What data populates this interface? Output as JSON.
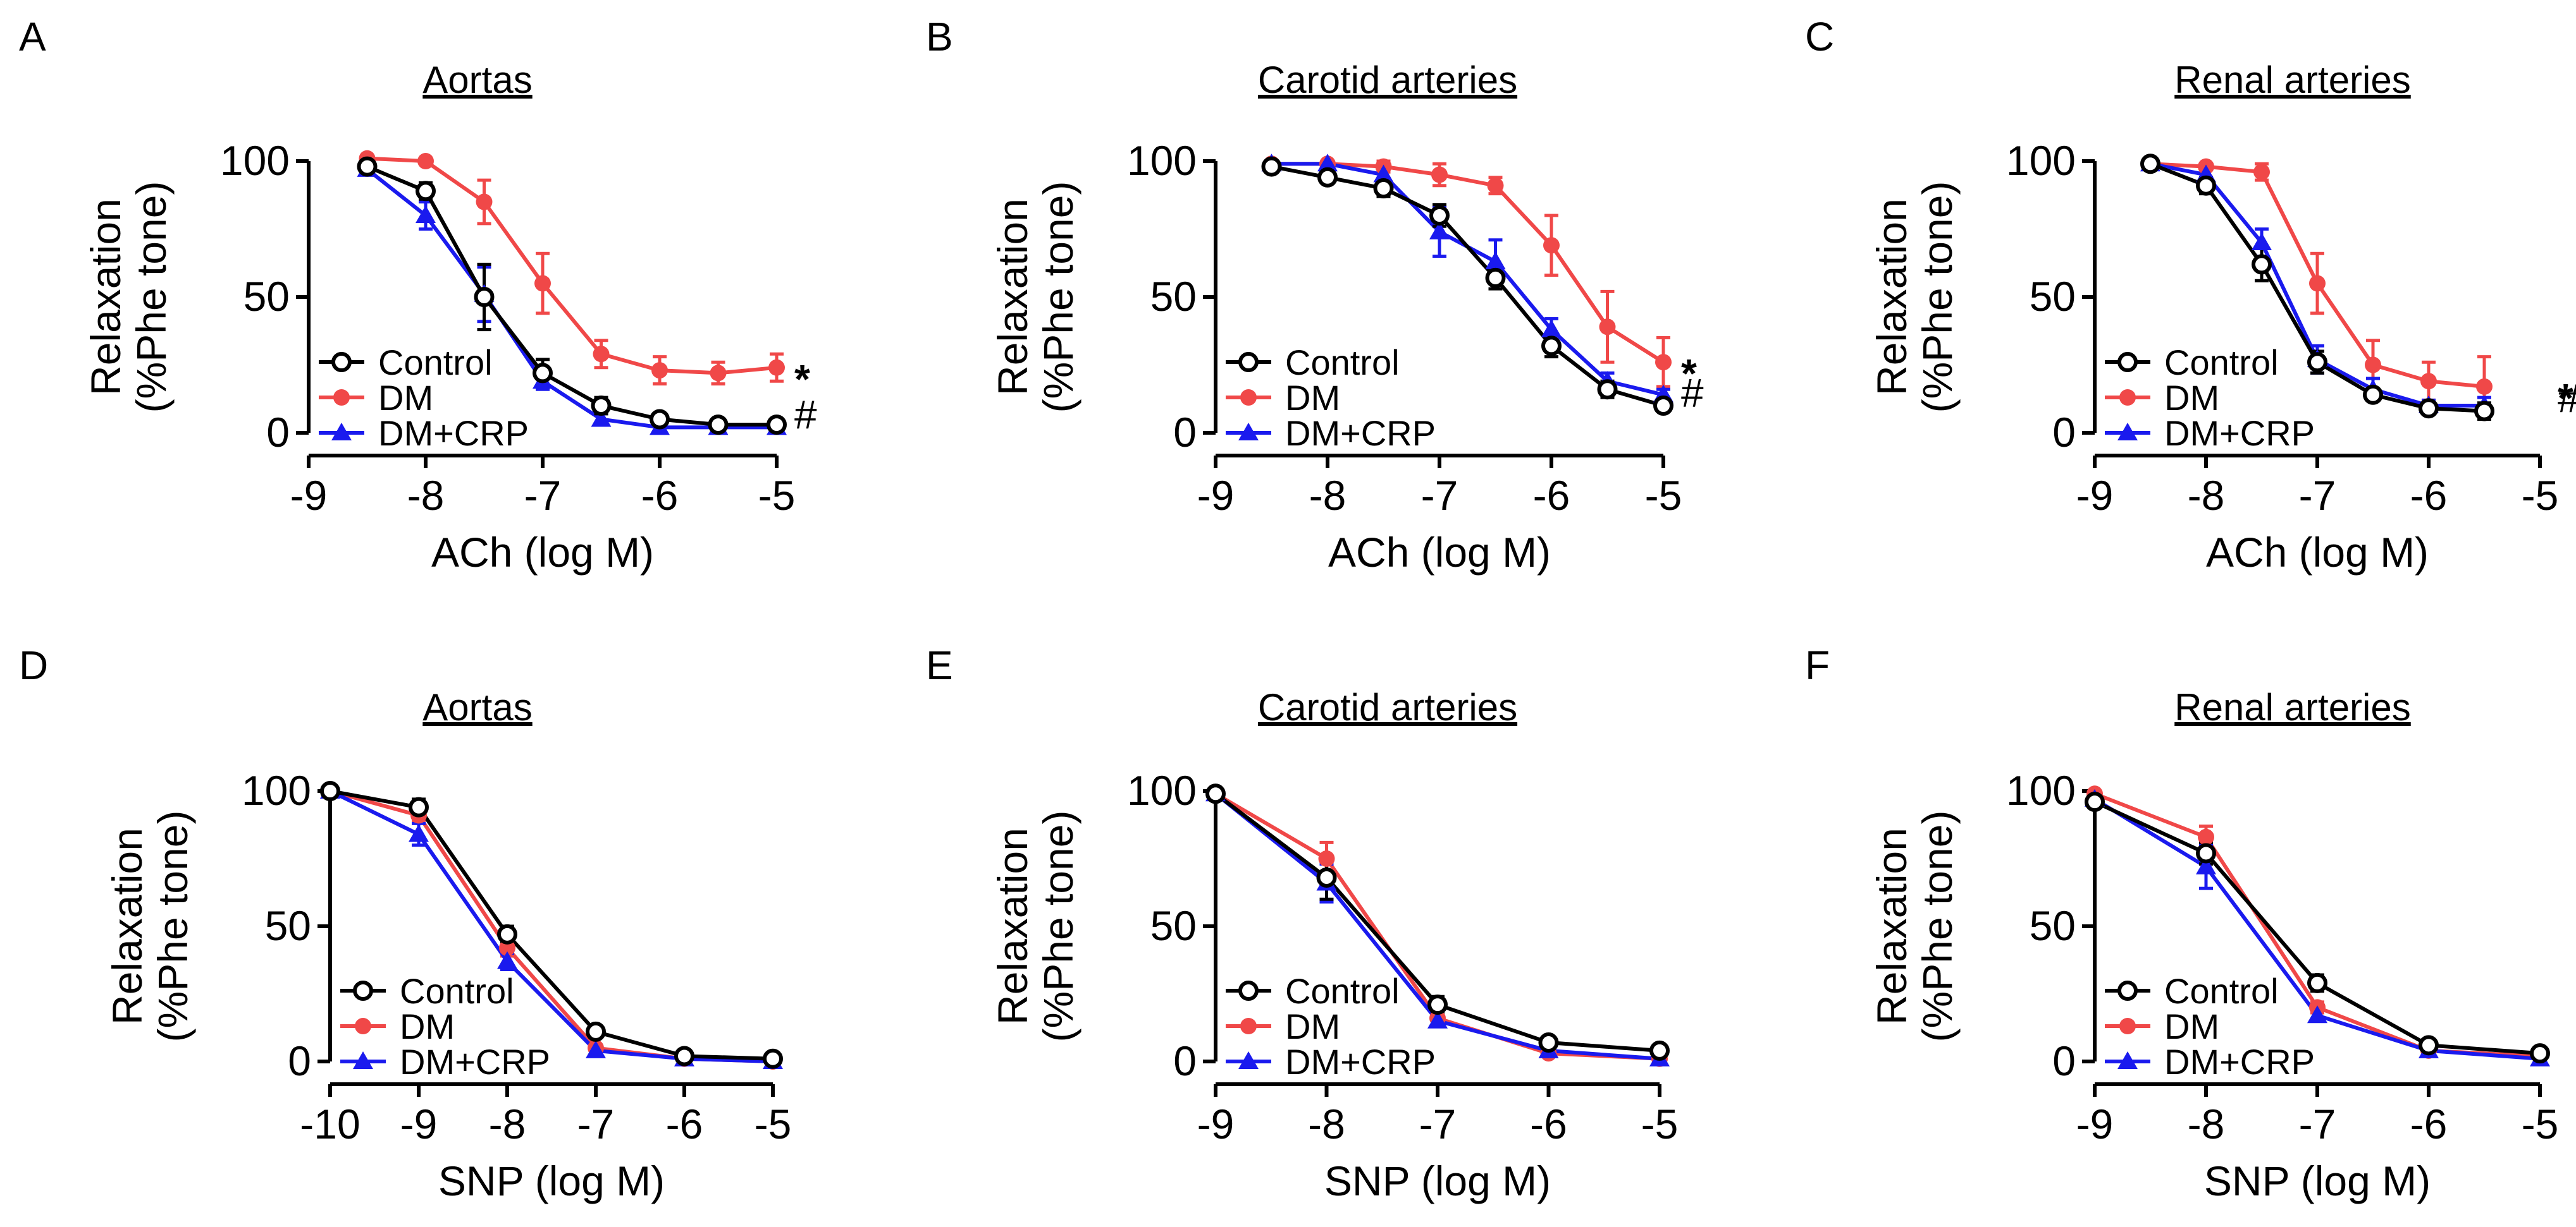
{
  "colors": {
    "control": "#000000",
    "dm": "#f04848",
    "dmcrp": "#1a1aee"
  },
  "chart_data": [
    {
      "type": "line",
      "panel": "A",
      "title": "Aortas",
      "xlabel": "ACh (log M)",
      "ylabel": [
        "Relaxation",
        "(%Phe tone)"
      ],
      "xlim": [
        -9,
        -5
      ],
      "ylim": [
        0,
        100
      ],
      "xticks": [
        -9,
        -8,
        -7,
        -6,
        -5
      ],
      "yticks": [
        0,
        50,
        100
      ],
      "xtick_labels": [
        "-9",
        "-8",
        "-7",
        "-6",
        "-5"
      ],
      "ytick_labels": [
        "0",
        "50",
        "100"
      ],
      "legend": [
        "Control",
        "DM",
        "DM+CRP"
      ],
      "series": [
        {
          "name": "Control",
          "x": [
            -8.5,
            -8,
            -7.5,
            -7,
            -6.5,
            -6,
            -5.5,
            -5
          ],
          "values": [
            98,
            89,
            50,
            22,
            10,
            5,
            3,
            3
          ],
          "err": [
            2,
            3,
            12,
            5,
            3,
            2,
            2,
            2
          ]
        },
        {
          "name": "DM",
          "x": [
            -8.5,
            -8,
            -7.5,
            -7,
            -6.5,
            -6,
            -5.5,
            -5
          ],
          "values": [
            101,
            100,
            85,
            55,
            29,
            23,
            22,
            24
          ],
          "err": [
            1,
            1,
            8,
            11,
            5,
            5,
            4,
            5
          ]
        },
        {
          "name": "DM+CRP",
          "x": [
            -8.5,
            -8,
            -7.5,
            -7,
            -6.5,
            -6,
            -5.5,
            -5
          ],
          "values": [
            97,
            80,
            51,
            19,
            5,
            2,
            2,
            2
          ],
          "err": [
            2,
            5,
            10,
            3,
            2,
            1,
            1,
            1
          ]
        }
      ],
      "annotations": {
        "star": "*",
        "hash": "#"
      }
    },
    {
      "type": "line",
      "panel": "B",
      "title": "Carotid arteries",
      "xlabel": "ACh (log M)",
      "ylabel": [
        "Relaxation",
        "(%Phe tone)"
      ],
      "xlim": [
        -9,
        -5
      ],
      "ylim": [
        0,
        100
      ],
      "xticks": [
        -9,
        -8,
        -7,
        -6,
        -5
      ],
      "yticks": [
        0,
        50,
        100
      ],
      "xtick_labels": [
        "-9",
        "-8",
        "-7",
        "-6",
        "-5"
      ],
      "ytick_labels": [
        "0",
        "50",
        "100"
      ],
      "legend": [
        "Control",
        "DM",
        "DM+CRP"
      ],
      "series": [
        {
          "name": "Control",
          "x": [
            -8.5,
            -8,
            -7.5,
            -7,
            -6.5,
            -6,
            -5.5,
            -5
          ],
          "values": [
            98,
            94,
            90,
            80,
            57,
            32,
            16,
            10
          ],
          "err": [
            1,
            2,
            3,
            4,
            4,
            4,
            3,
            2
          ]
        },
        {
          "name": "DM",
          "x": [
            -8.5,
            -8,
            -7.5,
            -7,
            -6.5,
            -6,
            -5.5,
            -5
          ],
          "values": [
            99,
            99,
            98,
            95,
            91,
            69,
            39,
            26
          ],
          "err": [
            1,
            1,
            2,
            4,
            3,
            11,
            13,
            9
          ]
        },
        {
          "name": "DM+CRP",
          "x": [
            -8.5,
            -8,
            -7.5,
            -7,
            -6.5,
            -6,
            -5.5,
            -5
          ],
          "values": [
            99,
            99,
            95,
            74,
            63,
            38,
            19,
            14
          ],
          "err": [
            1,
            1,
            3,
            9,
            8,
            4,
            3,
            2
          ]
        }
      ],
      "annotations": {
        "star": "*",
        "hash": "#"
      }
    },
    {
      "type": "line",
      "panel": "C",
      "title": "Renal arteries",
      "xlabel": "ACh (log M)",
      "ylabel": [
        "Relaxation",
        "(%Phe tone)"
      ],
      "xlim": [
        -9,
        -5
      ],
      "ylim": [
        0,
        100
      ],
      "xticks": [
        -9,
        -8,
        -7,
        -6,
        -5
      ],
      "yticks": [
        0,
        50,
        100
      ],
      "xtick_labels": [
        "-9",
        "-8",
        "-7",
        "-6",
        "-5"
      ],
      "ytick_labels": [
        "0",
        "50",
        "100"
      ],
      "legend": [
        "Control",
        "DM",
        "DM+CRP"
      ],
      "series": [
        {
          "name": "Control",
          "x": [
            -8.5,
            -8,
            -7.5,
            -7,
            -6.5,
            -6,
            -5.5
          ],
          "values": [
            99,
            91,
            62,
            26,
            14,
            9,
            8
          ],
          "err": [
            1,
            3,
            6,
            4,
            2,
            2,
            3
          ]
        },
        {
          "name": "DM",
          "x": [
            -8.5,
            -8,
            -7.5,
            -7,
            -6.5,
            -6,
            -5.5
          ],
          "values": [
            99,
            98,
            96,
            55,
            25,
            19,
            17
          ],
          "err": [
            1,
            1,
            3,
            11,
            9,
            7,
            11
          ]
        },
        {
          "name": "DM+CRP",
          "x": [
            -8.5,
            -8,
            -7.5,
            -7,
            -6.5,
            -6,
            -5.5
          ],
          "values": [
            99,
            95,
            70,
            27,
            16,
            10,
            10
          ],
          "err": [
            1,
            2,
            5,
            5,
            4,
            2,
            3
          ]
        }
      ],
      "annotations": {
        "star": "*",
        "hash": "#"
      }
    },
    {
      "type": "line",
      "panel": "D",
      "title": "Aortas",
      "xlabel": "SNP (log M)",
      "ylabel": [
        "Relaxation",
        "(%Phe tone)"
      ],
      "xlim": [
        -10,
        -5
      ],
      "ylim": [
        0,
        100
      ],
      "xticks": [
        -10,
        -9,
        -8,
        -7,
        -6,
        -5
      ],
      "yticks": [
        0,
        50,
        100
      ],
      "xtick_labels": [
        "-10",
        "-9",
        "-8",
        "-7",
        "-6",
        "-5"
      ],
      "ytick_labels": [
        "0",
        "50",
        "100"
      ],
      "legend": [
        "Control",
        "DM",
        "DM+CRP"
      ],
      "series": [
        {
          "name": "Control",
          "x": [
            -10,
            -9,
            -8,
            -7,
            -6,
            -5
          ],
          "values": [
            100,
            94,
            47,
            11,
            2,
            1
          ],
          "err": [
            1,
            3,
            3,
            1,
            1,
            1
          ]
        },
        {
          "name": "DM",
          "x": [
            -10,
            -9,
            -8,
            -7,
            -6,
            -5
          ],
          "values": [
            100,
            91,
            42,
            5,
            1,
            0
          ],
          "err": [
            1,
            2,
            3,
            1,
            1,
            1
          ]
        },
        {
          "name": "DM+CRP",
          "x": [
            -10,
            -9,
            -8,
            -7,
            -6,
            -5
          ],
          "values": [
            100,
            84,
            37,
            4,
            1,
            0
          ],
          "err": [
            1,
            4,
            3,
            1,
            1,
            1
          ]
        }
      ]
    },
    {
      "type": "line",
      "panel": "E",
      "title": "Carotid arteries",
      "xlabel": "SNP (log M)",
      "ylabel": [
        "Relaxation",
        "(%Phe tone)"
      ],
      "xlim": [
        -9,
        -5
      ],
      "ylim": [
        0,
        100
      ],
      "xticks": [
        -9,
        -8,
        -7,
        -6,
        -5
      ],
      "yticks": [
        0,
        50,
        100
      ],
      "xtick_labels": [
        "-9",
        "-8",
        "-7",
        "-6",
        "-5"
      ],
      "ytick_labels": [
        "0",
        "50",
        "100"
      ],
      "legend": [
        "Control",
        "DM",
        "DM+CRP"
      ],
      "series": [
        {
          "name": "Control",
          "x": [
            -9,
            -8,
            -7,
            -6,
            -5
          ],
          "values": [
            99,
            68,
            21,
            7,
            4
          ],
          "err": [
            1,
            8,
            3,
            2,
            1
          ]
        },
        {
          "name": "DM",
          "x": [
            -9,
            -8,
            -7,
            -6,
            -5
          ],
          "values": [
            99,
            75,
            16,
            3,
            1
          ],
          "err": [
            1,
            6,
            2,
            1,
            1
          ]
        },
        {
          "name": "DM+CRP",
          "x": [
            -9,
            -8,
            -7,
            -6,
            -5
          ],
          "values": [
            99,
            66,
            15,
            4,
            1
          ],
          "err": [
            1,
            7,
            2,
            1,
            1
          ]
        }
      ]
    },
    {
      "type": "line",
      "panel": "F",
      "title": "Renal arteries",
      "xlabel": "SNP (log M)",
      "ylabel": [
        "Relaxation",
        "(%Phe tone)"
      ],
      "xlim": [
        -9,
        -5
      ],
      "ylim": [
        0,
        100
      ],
      "xticks": [
        -9,
        -8,
        -7,
        -6,
        -5
      ],
      "yticks": [
        0,
        50,
        100
      ],
      "xtick_labels": [
        "-9",
        "-8",
        "-7",
        "-6",
        "-5"
      ],
      "ytick_labels": [
        "0",
        "50",
        "100"
      ],
      "legend": [
        "Control",
        "DM",
        "DM+CRP"
      ],
      "series": [
        {
          "name": "Control",
          "x": [
            -9,
            -8,
            -7,
            -6,
            -5
          ],
          "values": [
            96,
            77,
            29,
            6,
            3
          ],
          "err": [
            1,
            4,
            3,
            1,
            1
          ]
        },
        {
          "name": "DM",
          "x": [
            -9,
            -8,
            -7,
            -6,
            -5
          ],
          "values": [
            99,
            83,
            20,
            4,
            2
          ],
          "err": [
            1,
            4,
            2,
            1,
            1
          ]
        },
        {
          "name": "DM+CRP",
          "x": [
            -9,
            -8,
            -7,
            -6,
            -5
          ],
          "values": [
            97,
            72,
            17,
            4,
            1
          ],
          "err": [
            1,
            8,
            2,
            1,
            1
          ]
        }
      ]
    }
  ]
}
